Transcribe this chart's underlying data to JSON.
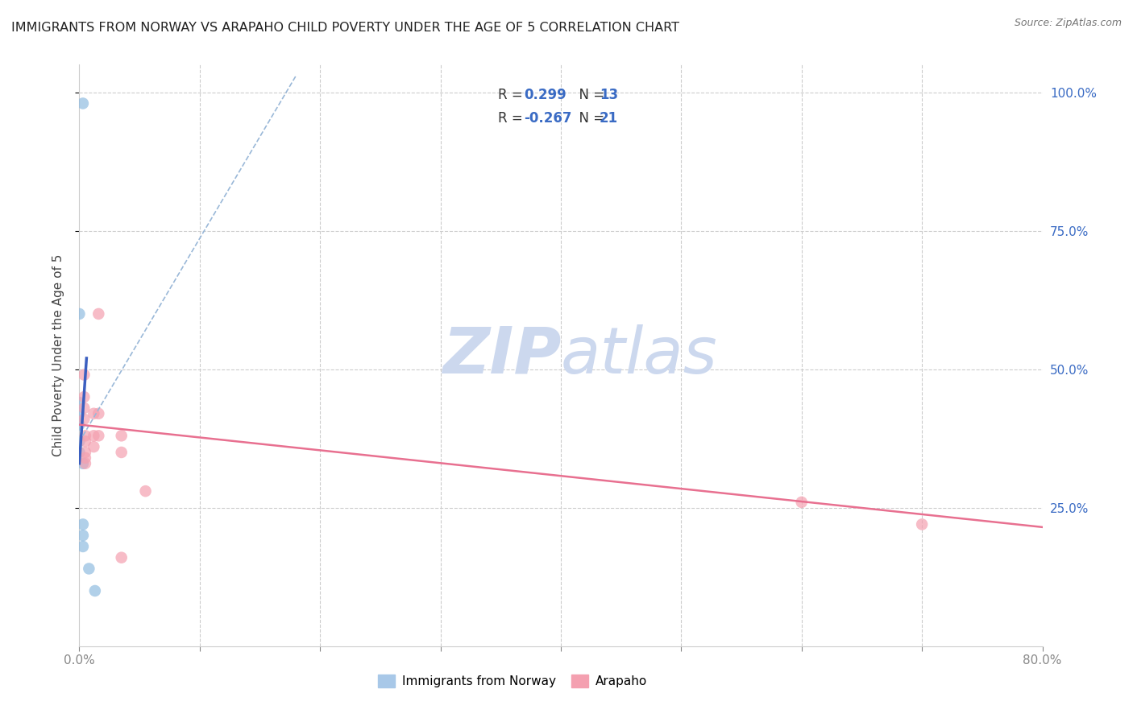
{
  "title": "IMMIGRANTS FROM NORWAY VS ARAPAHO CHILD POVERTY UNDER THE AGE OF 5 CORRELATION CHART",
  "source": "Source: ZipAtlas.com",
  "ylabel": "Child Poverty Under the Age of 5",
  "xlim": [
    0.0,
    0.8
  ],
  "ylim": [
    0.0,
    1.05
  ],
  "xticks": [
    0.0,
    0.1,
    0.2,
    0.3,
    0.4,
    0.5,
    0.6,
    0.7,
    0.8
  ],
  "xticklabels": [
    "0.0%",
    "",
    "",
    "",
    "",
    "",
    "",
    "",
    "80.0%"
  ],
  "yticks_right": [
    0.25,
    0.5,
    0.75,
    1.0
  ],
  "yticklabels_right": [
    "25.0%",
    "50.0%",
    "75.0%",
    "100.0%"
  ],
  "norway_scatter": [
    [
      0.003,
      0.98
    ],
    [
      0.0,
      0.6
    ],
    [
      0.0,
      0.44
    ],
    [
      0.0,
      0.42
    ],
    [
      0.0,
      0.4
    ],
    [
      0.0,
      0.37
    ],
    [
      0.0,
      0.35
    ],
    [
      0.003,
      0.33
    ],
    [
      0.003,
      0.22
    ],
    [
      0.003,
      0.2
    ],
    [
      0.003,
      0.18
    ],
    [
      0.008,
      0.14
    ],
    [
      0.013,
      0.1
    ]
  ],
  "arapaho_scatter": [
    [
      0.004,
      0.49
    ],
    [
      0.004,
      0.45
    ],
    [
      0.004,
      0.43
    ],
    [
      0.004,
      0.41
    ],
    [
      0.005,
      0.38
    ],
    [
      0.005,
      0.37
    ],
    [
      0.005,
      0.35
    ],
    [
      0.005,
      0.34
    ],
    [
      0.005,
      0.33
    ],
    [
      0.012,
      0.42
    ],
    [
      0.012,
      0.38
    ],
    [
      0.012,
      0.36
    ],
    [
      0.016,
      0.6
    ],
    [
      0.016,
      0.42
    ],
    [
      0.016,
      0.38
    ],
    [
      0.035,
      0.38
    ],
    [
      0.035,
      0.35
    ],
    [
      0.035,
      0.16
    ],
    [
      0.055,
      0.28
    ],
    [
      0.6,
      0.26
    ],
    [
      0.7,
      0.22
    ]
  ],
  "norway_line_solid": {
    "x": [
      0.0,
      0.006
    ],
    "y": [
      0.33,
      0.52
    ],
    "color": "#3b5fc0",
    "linewidth": 2.5
  },
  "norway_line_dashed": {
    "x": [
      0.003,
      0.18
    ],
    "y": [
      0.38,
      1.03
    ],
    "color": "#9ab8d8",
    "linewidth": 1.2
  },
  "arapaho_line": {
    "x": [
      0.0,
      0.8
    ],
    "y": [
      0.4,
      0.215
    ],
    "color": "#e87090",
    "linewidth": 1.8
  },
  "norway_color": "#90bce0",
  "arapaho_color": "#f4a0b0",
  "marker_size": 110,
  "background_color": "#ffffff",
  "grid_color": "#cccccc",
  "watermark_zip": "ZIP",
  "watermark_atlas": "atlas",
  "watermark_color": "#ccd8ee",
  "watermark_fontsize": 58
}
